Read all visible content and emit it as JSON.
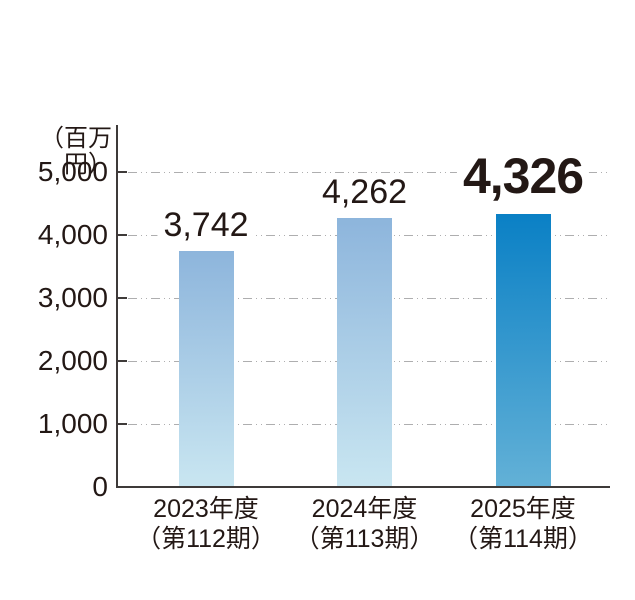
{
  "chart_data": {
    "type": "bar",
    "title": "",
    "unit_label": "（百万円）",
    "categories": [
      "2023年度",
      "2024年度",
      "2025年度"
    ],
    "category_sub": [
      "（第112期）",
      "（第113期）",
      "（第114期）"
    ],
    "values": [
      3742,
      4262,
      4326
    ],
    "value_labels": [
      "3,742",
      "4,262",
      "4,326"
    ],
    "highlight_index": 2,
    "ylim": [
      0,
      5000
    ],
    "yticks": [
      0,
      1000,
      2000,
      3000,
      4000,
      5000
    ],
    "ytick_labels": [
      "0",
      "1,000",
      "2,000",
      "3,000",
      "4,000",
      "5,000"
    ],
    "grid": "horizontal-dash-dot",
    "legend": "none",
    "colors": {
      "bar_top": "#8db5dc",
      "bar_bottom": "#c9e6f1",
      "highlight_bar_top": "#0a80c5",
      "highlight_bar_bottom": "#63b1d7",
      "axis": "#3e3a39",
      "grid_line": "#aeaeaf",
      "text": "#231815"
    }
  }
}
